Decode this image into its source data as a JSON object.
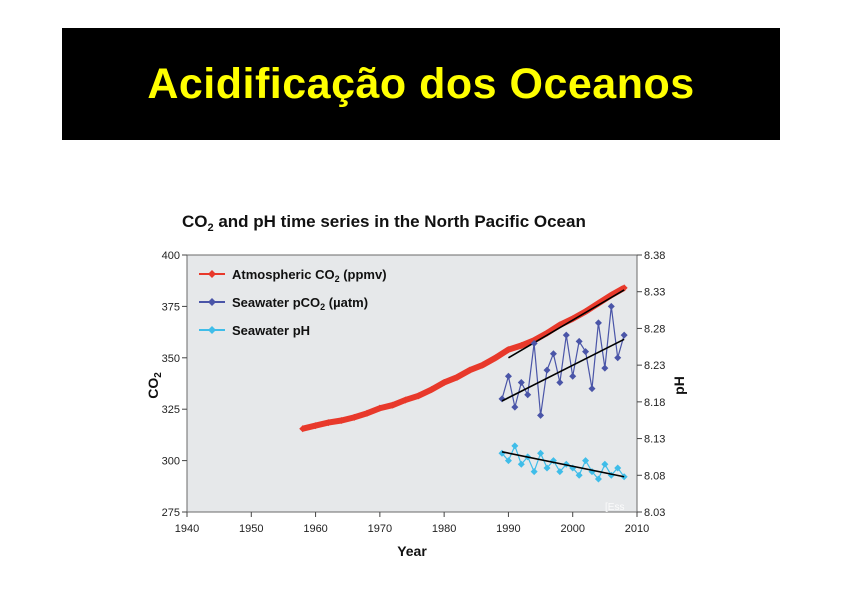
{
  "slide": {
    "title": "Acidificação dos Oceanos",
    "title_color": "#ffff00",
    "banner_color": "#000000"
  },
  "watermark": "[Ess",
  "chart_data": {
    "type": "line",
    "title": "CO₂ and pH time series in the North Pacific Ocean",
    "title_main": "CO",
    "title_sub": "2",
    "title_rest": " and pH time series in the North Pacific Ocean",
    "xlabel": "Year",
    "ylabel_left": "CO₂",
    "ylabel_left_main": "CO",
    "ylabel_left_sub": "2",
    "ylabel_right": "pH",
    "xlim": [
      1940,
      2010
    ],
    "xticks": [
      1940,
      1950,
      1960,
      1970,
      1980,
      1990,
      2000,
      2010
    ],
    "ylim_left": [
      275,
      400
    ],
    "yticks_left": [
      275,
      300,
      325,
      350,
      375,
      400
    ],
    "ylim_right": [
      8.03,
      8.38
    ],
    "yticks_right": [
      "8.03",
      "8.08",
      "8.13",
      "8.18",
      "8.23",
      "8.28",
      "8.33",
      "8.38"
    ],
    "grid": false,
    "legend_position": "top-left",
    "series": [
      {
        "name": "Atmospheric CO₂ (ppmv)",
        "legend_main": "Atmospheric CO",
        "legend_sub": "2",
        "legend_rest": " (ppmv)",
        "color": "#e8392b",
        "axis": "left",
        "trend": [
          [
            1990,
            350
          ],
          [
            2008,
            383
          ]
        ],
        "x": [
          1958,
          1960,
          1962,
          1964,
          1966,
          1968,
          1970,
          1972,
          1974,
          1976,
          1978,
          1980,
          1982,
          1984,
          1986,
          1988,
          1990,
          1992,
          1994,
          1996,
          1998,
          2000,
          2002,
          2004,
          2006,
          2008
        ],
        "y": [
          315.5,
          317,
          318.5,
          319.5,
          321,
          323,
          325.5,
          327,
          329.5,
          331.5,
          334.5,
          338,
          340.5,
          344,
          346.5,
          350,
          354,
          356,
          358.5,
          362,
          366,
          369,
          372.5,
          376.5,
          380.5,
          384
        ]
      },
      {
        "name": "Seawater pCO₂ (µatm)",
        "legend_main": "Seawater pCO",
        "legend_sub": "2",
        "legend_rest": " (µatm)",
        "color": "#4a55a8",
        "axis": "left",
        "trend": [
          [
            1989,
            329
          ],
          [
            2008,
            359
          ]
        ],
        "x": [
          1989,
          1990,
          1991,
          1992,
          1993,
          1994,
          1995,
          1996,
          1997,
          1998,
          1999,
          2000,
          2001,
          2002,
          2003,
          2004,
          2005,
          2006,
          2007,
          2008
        ],
        "y": [
          330,
          341,
          326,
          338,
          332,
          357,
          322,
          344,
          352,
          338,
          361,
          341,
          358,
          353,
          335,
          367,
          345,
          375,
          350,
          361
        ]
      },
      {
        "name": "Seawater pH",
        "legend_main": "Seawater pH",
        "legend_sub": "",
        "legend_rest": "",
        "color": "#3fbde9",
        "axis": "right",
        "trend": [
          [
            1989,
            8.112
          ],
          [
            2008,
            8.078
          ]
        ],
        "x": [
          1989,
          1990,
          1991,
          1992,
          1993,
          1994,
          1995,
          1996,
          1997,
          1998,
          1999,
          2000,
          2001,
          2002,
          2003,
          2004,
          2005,
          2006,
          2007,
          2008
        ],
        "y": [
          8.11,
          8.1,
          8.12,
          8.095,
          8.105,
          8.085,
          8.11,
          8.09,
          8.1,
          8.085,
          8.095,
          8.09,
          8.08,
          8.1,
          8.085,
          8.075,
          8.095,
          8.08,
          8.09,
          8.078
        ]
      }
    ]
  }
}
